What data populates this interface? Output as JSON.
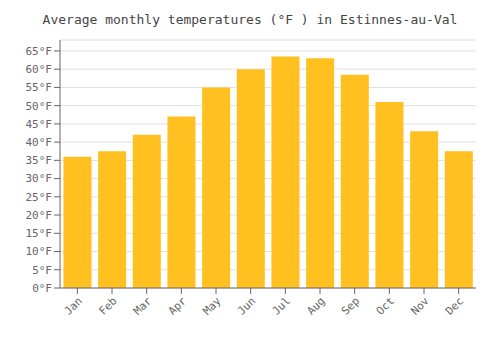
{
  "chart_data": {
    "type": "bar",
    "title": "Average monthly temperatures (°F ) in Estinnes-au-Val",
    "categories": [
      "Jan",
      "Feb",
      "Mar",
      "Apr",
      "May",
      "Jun",
      "Jul",
      "Aug",
      "Sep",
      "Oct",
      "Nov",
      "Dec"
    ],
    "values": [
      36,
      37.5,
      42,
      47,
      55,
      60,
      63.5,
      63,
      58.5,
      51,
      43,
      37.5
    ],
    "color": "#FFC020",
    "ylim": [
      0,
      68
    ],
    "yticks": [
      {
        "value": 0,
        "label": "0°F"
      },
      {
        "value": 5,
        "label": "5°F"
      },
      {
        "value": 10,
        "label": "10°F"
      },
      {
        "value": 15,
        "label": "15°F"
      },
      {
        "value": 20,
        "label": "20°F"
      },
      {
        "value": 25,
        "label": "25°F"
      },
      {
        "value": 30,
        "label": "30°F"
      },
      {
        "value": 35,
        "label": "35°F"
      },
      {
        "value": 40,
        "label": "40°F"
      },
      {
        "value": 45,
        "label": "45°F"
      },
      {
        "value": 50,
        "label": "50°F"
      },
      {
        "value": 55,
        "label": "55°F"
      },
      {
        "value": 60,
        "label": "60°F"
      },
      {
        "value": 65,
        "label": "65°F"
      }
    ],
    "grid": true
  }
}
